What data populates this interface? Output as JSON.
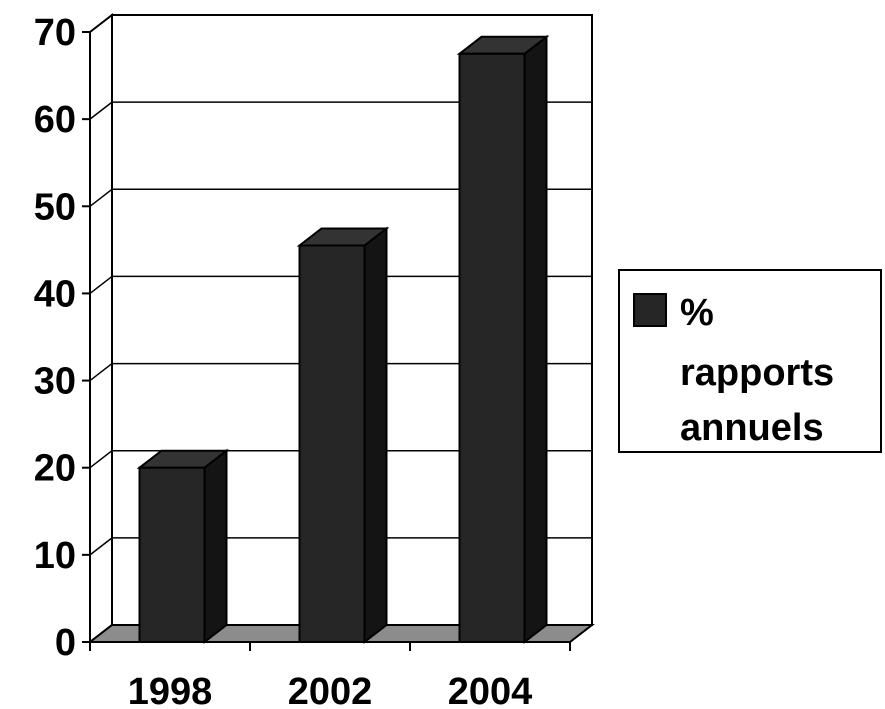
{
  "chart_data": {
    "type": "bar",
    "categories": [
      "1998",
      "2002",
      "2004"
    ],
    "series": [
      {
        "name": "% rapports annuels",
        "values": [
          20,
          45.5,
          67.5
        ]
      }
    ],
    "ylim": [
      0,
      70
    ],
    "yticks": [
      "0",
      "10",
      "20",
      "30",
      "40",
      "50",
      "60",
      "70"
    ],
    "grid": true,
    "three_d": true,
    "legend_position": "right",
    "legend_lines": [
      "%",
      "rapports",
      "annuels"
    ],
    "colors": {
      "bar_front": "#262626",
      "bar_top": "#333333",
      "bar_side": "#141414",
      "floor": "#8c8c8c",
      "grid": "#000000"
    }
  }
}
